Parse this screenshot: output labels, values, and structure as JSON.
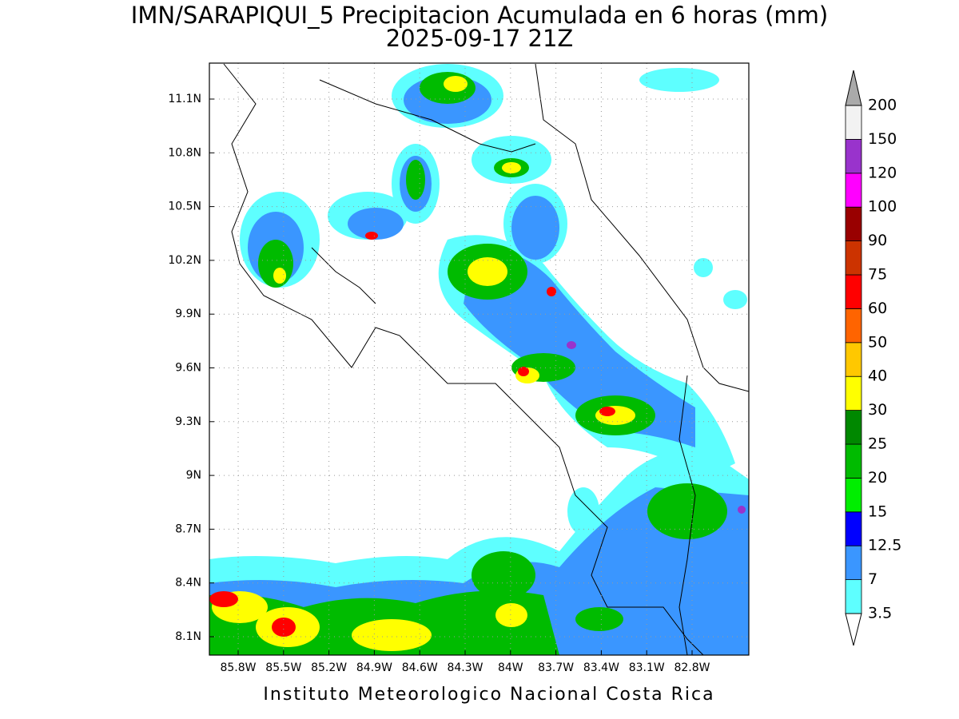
{
  "title": "IMN/SARAPIQUI_5 Precipitacion Acumulada en 6 horas (mm)",
  "subtitle": "2025-09-17 21Z",
  "footer": "Instituto Meteorologico Nacional Costa Rica",
  "map": {
    "lon_labels": [
      "85.8W",
      "85.5W",
      "85.2W",
      "84.9W",
      "84.6W",
      "84.3W",
      "84W",
      "83.7W",
      "83.4W",
      "83.1W",
      "82.8W"
    ],
    "lat_labels": [
      "11.1N",
      "10.8N",
      "10.5N",
      "10.2N",
      "9.9N",
      "9.6N",
      "9.3N",
      "9N",
      "8.7N",
      "8.4N",
      "8.1N"
    ]
  },
  "colorbar": {
    "labels": [
      "3.5",
      "7",
      "12.5",
      "15",
      "20",
      "25",
      "30",
      "40",
      "50",
      "60",
      "75",
      "90",
      "100",
      "120",
      "150",
      "200"
    ],
    "colors": [
      "#5effff",
      "#3a96ff",
      "#0000ff",
      "#00ee00",
      "#00bb00",
      "#008800",
      "#ffff00",
      "#ffc800",
      "#ff6400",
      "#ff0000",
      "#cc3300",
      "#990000",
      "#ff00ff",
      "#9933cc",
      "#f2f2f2"
    ],
    "over_color": "#aaaaaa",
    "under_color": "#ffffff"
  }
}
